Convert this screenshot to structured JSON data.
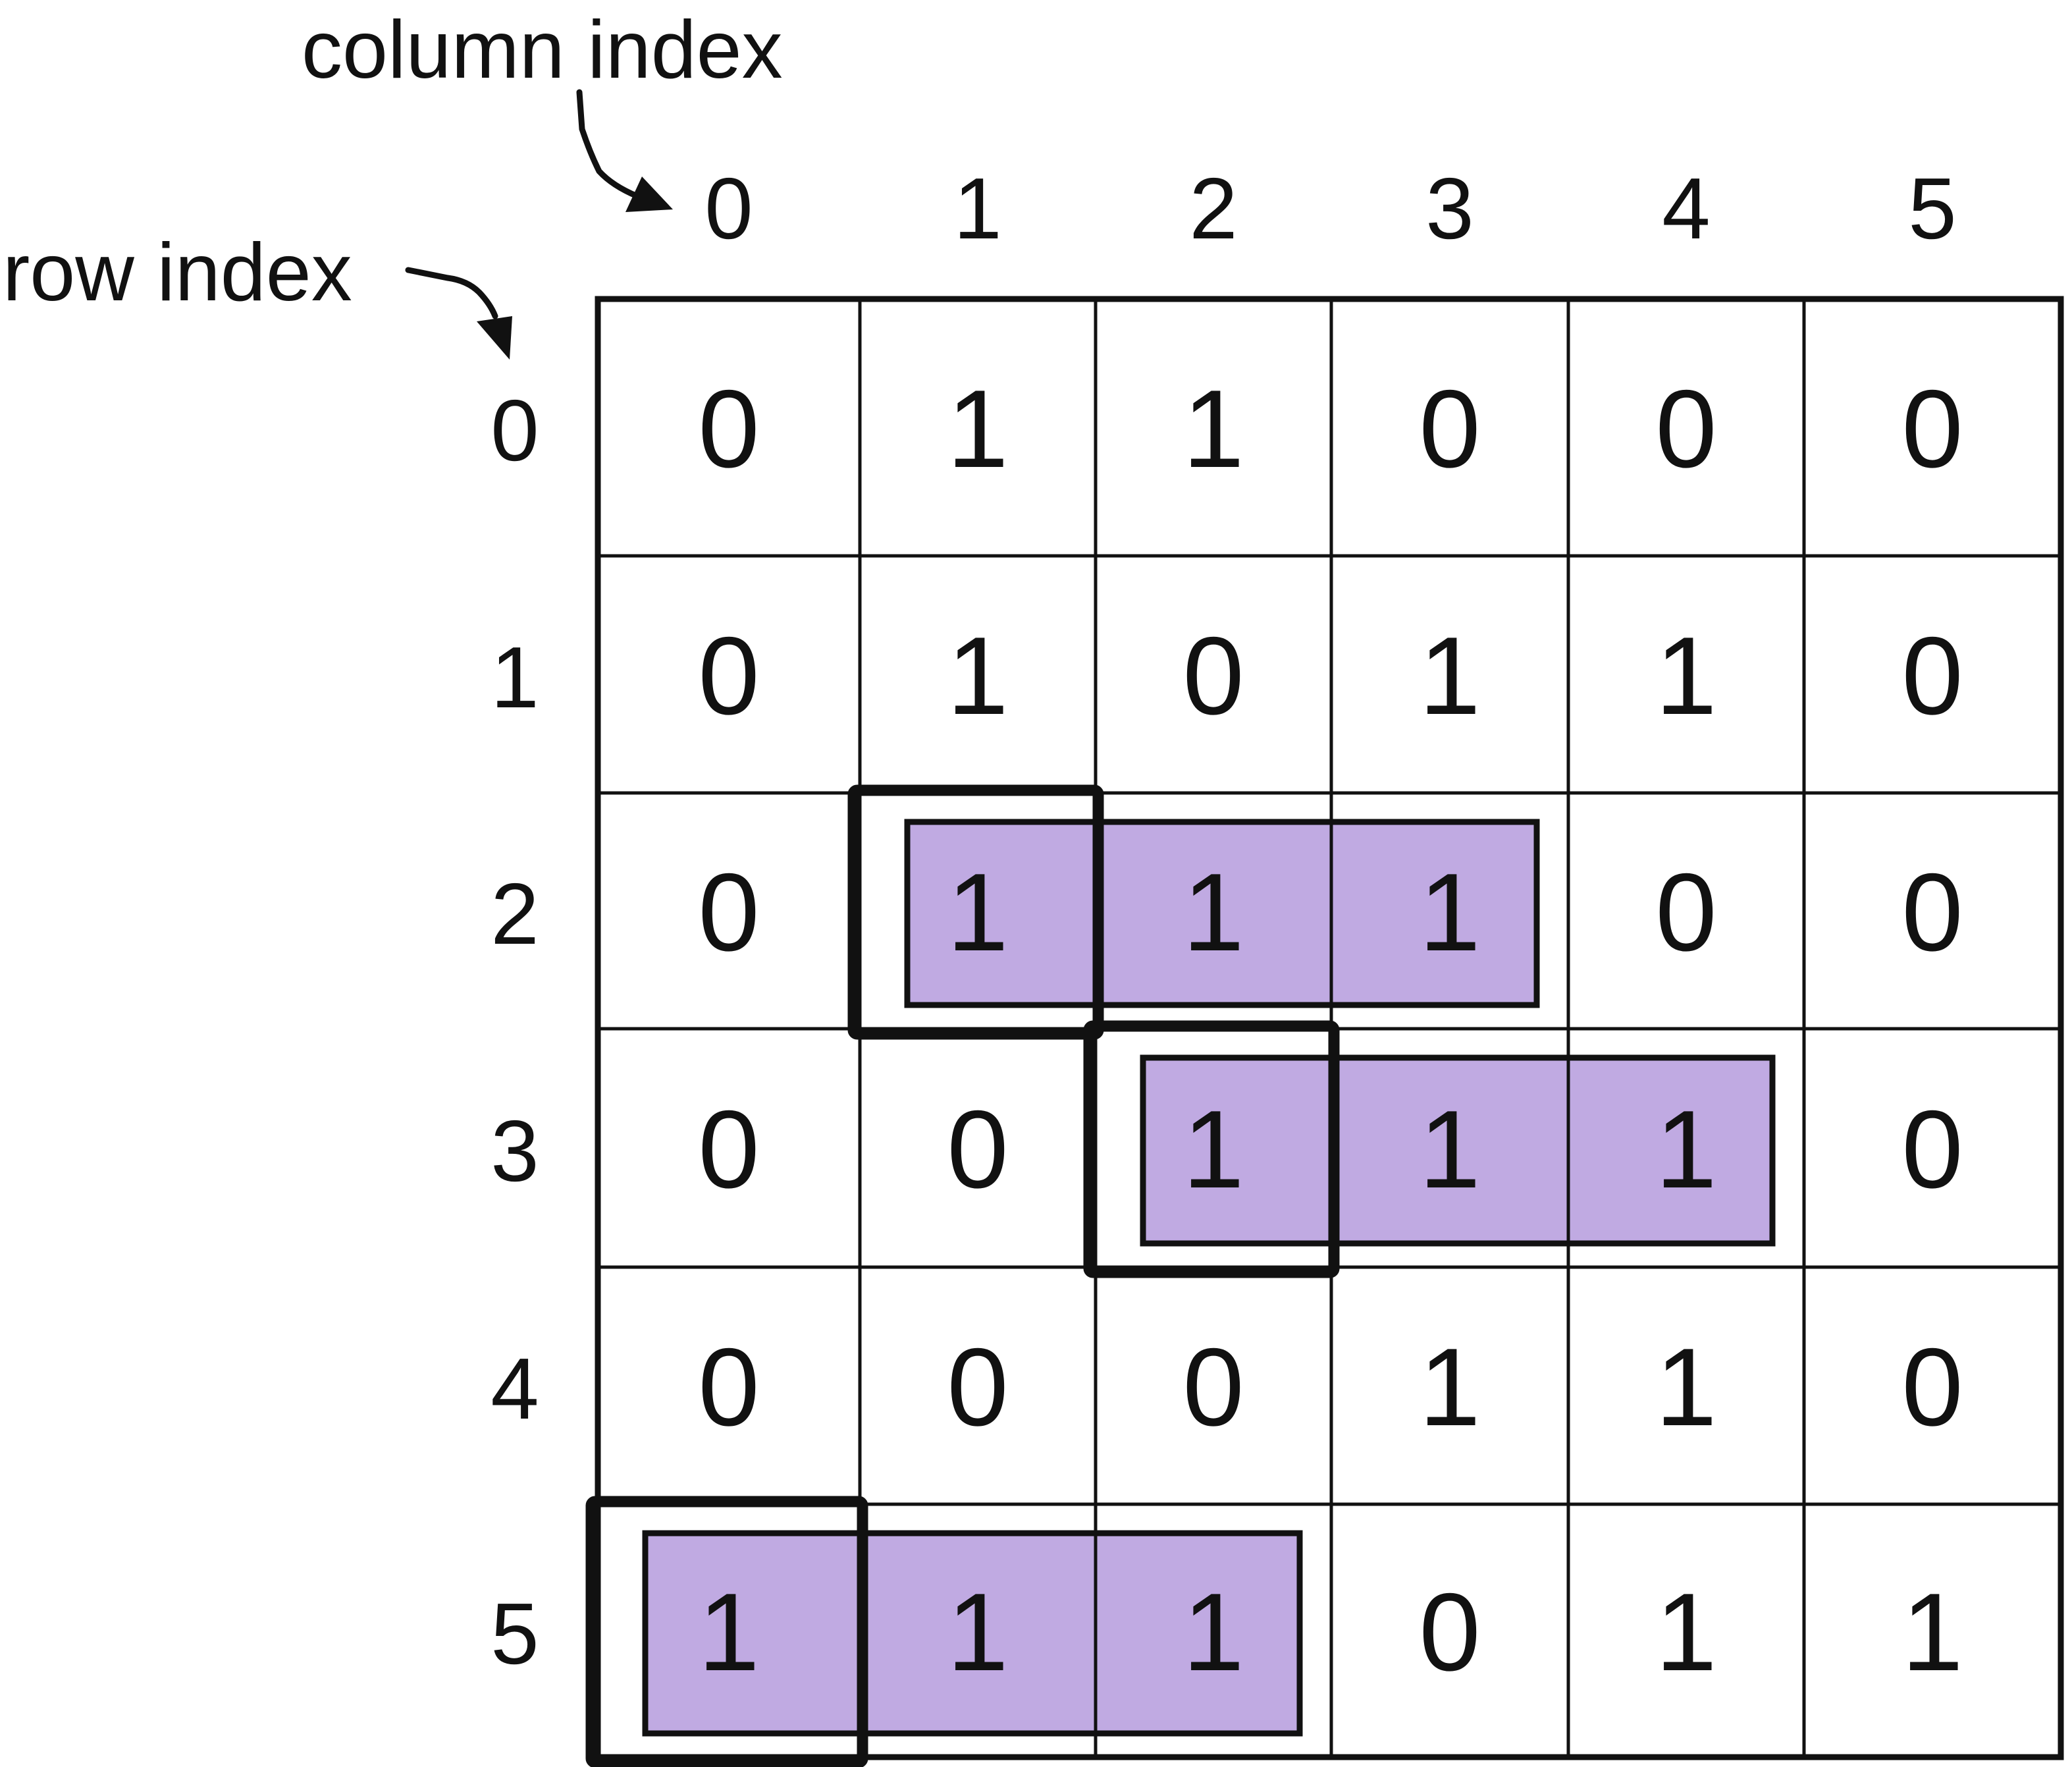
{
  "labels": {
    "column_index": "column index",
    "row_index": "row index"
  },
  "column_indices": [
    "0",
    "1",
    "2",
    "3",
    "4",
    "5"
  ],
  "row_indices": [
    "0",
    "1",
    "2",
    "3",
    "4",
    "5"
  ],
  "grid": [
    [
      "0",
      "1",
      "1",
      "0",
      "0",
      "0"
    ],
    [
      "0",
      "1",
      "0",
      "1",
      "1",
      "0"
    ],
    [
      "0",
      "1",
      "1",
      "1",
      "0",
      "0"
    ],
    [
      "0",
      "0",
      "1",
      "1",
      "1",
      "0"
    ],
    [
      "0",
      "0",
      "0",
      "1",
      "1",
      "0"
    ],
    [
      "1",
      "1",
      "1",
      "0",
      "1",
      "1"
    ]
  ],
  "highlights": [
    {
      "row": 2,
      "col_start": 1,
      "col_end": 3,
      "start_box": {
        "row": 2,
        "col": 1
      }
    },
    {
      "row": 3,
      "col_start": 2,
      "col_end": 4,
      "start_box": {
        "row": 3,
        "col": 2
      }
    },
    {
      "row": 5,
      "col_start": 0,
      "col_end": 2,
      "start_box": {
        "row": 5,
        "col": 0
      }
    }
  ],
  "colors": {
    "highlight_fill": "#c0aae2",
    "line": "#111111",
    "background": "#ffffff"
  }
}
